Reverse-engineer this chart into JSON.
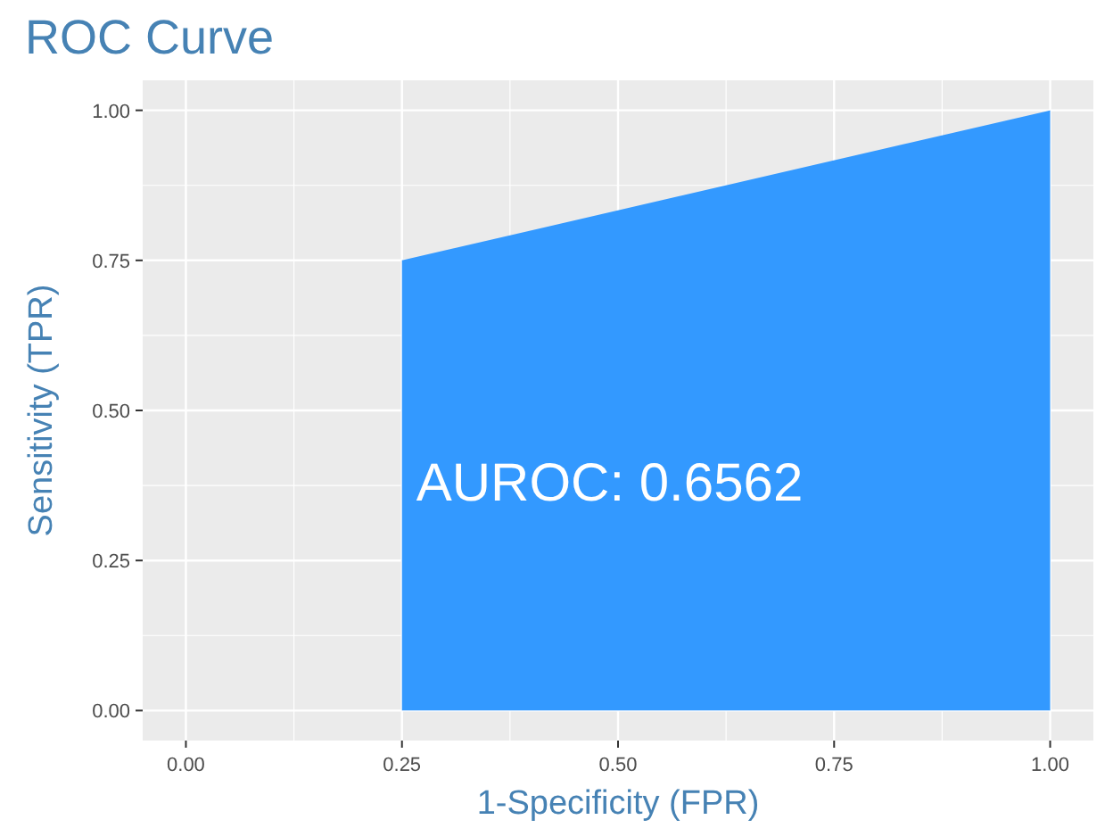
{
  "chart_data": {
    "type": "area",
    "title": "ROC Curve",
    "xlabel": "1-Specificity (FPR)",
    "ylabel": "Sensitivity (TPR)",
    "x": [
      0.25,
      1
    ],
    "series": [
      {
        "color": "#3399ff",
        "values": [
          0.75,
          1
        ]
      }
    ],
    "xlim": [
      -0.05,
      1.05
    ],
    "ylim": [
      -0.05,
      1.05
    ],
    "xticks": [
      {
        "value": 0,
        "label": "0.00"
      },
      {
        "value": 0.25,
        "label": "0.25"
      },
      {
        "value": 0.5,
        "label": "0.50"
      },
      {
        "value": 0.75,
        "label": "0.75"
      },
      {
        "value": 1,
        "label": "1.00"
      }
    ],
    "yticks": [
      {
        "value": 0,
        "label": "0.00"
      },
      {
        "value": 0.25,
        "label": "0.25"
      },
      {
        "value": 0.5,
        "label": "0.50"
      },
      {
        "value": 0.75,
        "label": "0.75"
      },
      {
        "value": 1,
        "label": "1.00"
      }
    ],
    "grid": true,
    "annotations": [
      "AUROC: 0.6562"
    ]
  }
}
